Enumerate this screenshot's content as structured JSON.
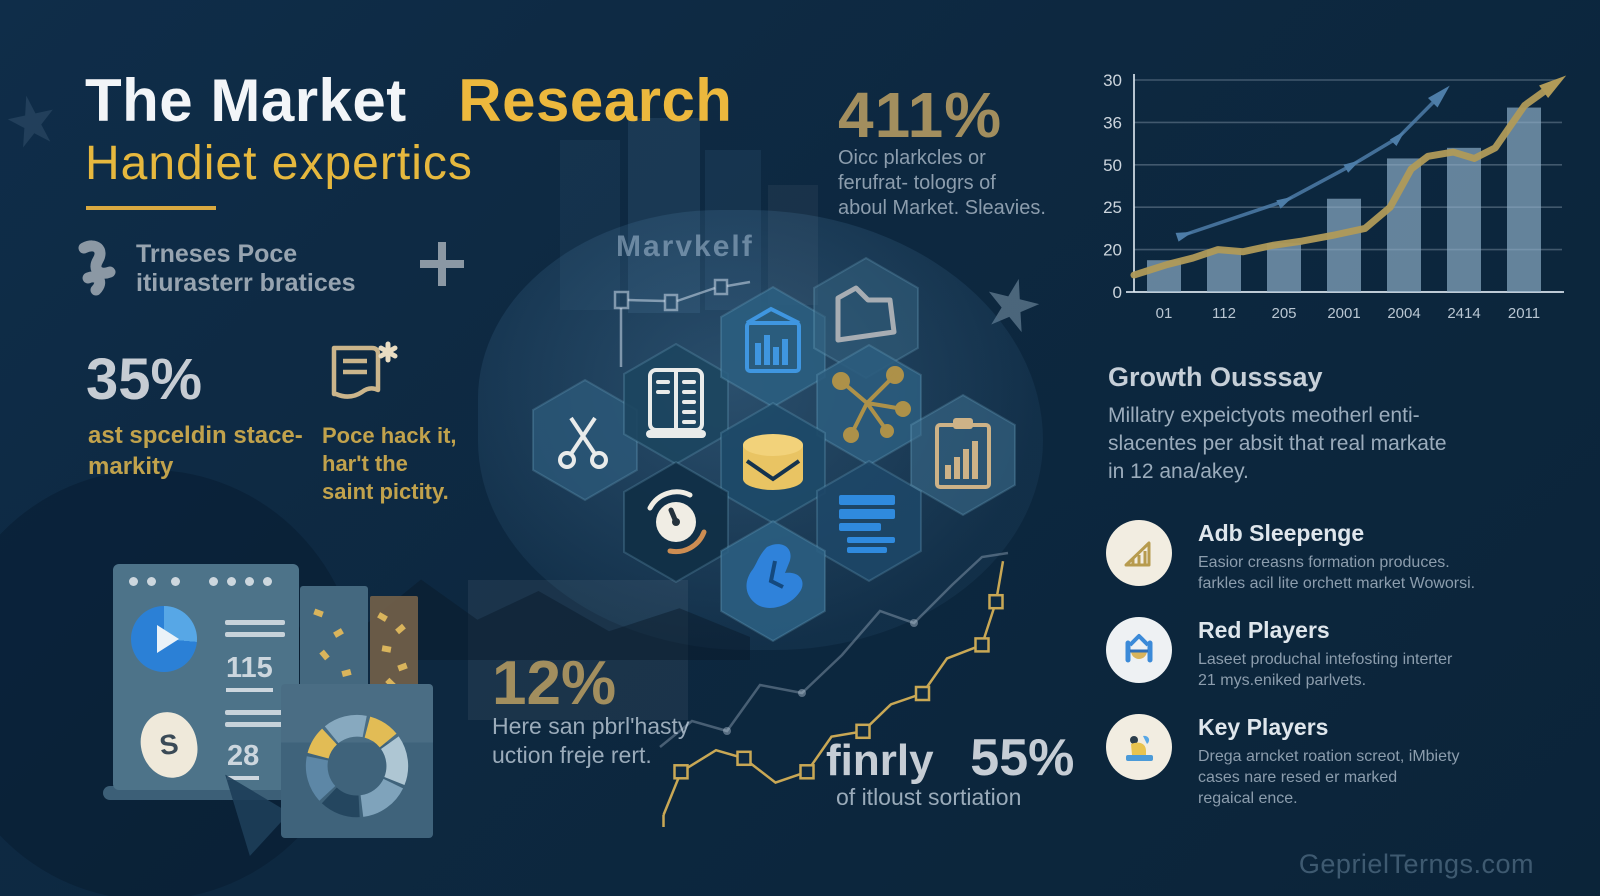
{
  "header": {
    "title_main": "The Market",
    "title_accent": "Research",
    "subtitle": "Handiet expertics"
  },
  "brand": {
    "line1": "Trneses Poce",
    "line2": "itiurasterr bratices"
  },
  "stats": {
    "stat_411": {
      "value": "411%",
      "lines": [
        "Oicc plarkcles or",
        "ferufrat- tologrs of",
        "aboul Market. Sleavies."
      ]
    },
    "stat_35": {
      "value": "35%",
      "lines": [
        "ast spceldin stace-",
        "markity"
      ]
    },
    "stat_12": {
      "value": "12%",
      "lines": [
        "Here san pbrl'hasty",
        "uction freje rert."
      ]
    },
    "stat_55": {
      "prefix": "finrly",
      "value": "55%",
      "caption": "of itloust sortiation"
    }
  },
  "doc_note": {
    "lines": [
      "Poce hack it,",
      "har't the",
      "saint pictity."
    ]
  },
  "center_label": "Marvkelf",
  "growth": {
    "heading": "Growth Ousssay",
    "lines": [
      "Millatry expeictyots  meotherl enti-",
      "slacentes per absit that real markate",
      "in 12 ana/akey."
    ]
  },
  "players": [
    {
      "title": "Adb Sleepenge",
      "icon": "growth-chart-icon",
      "lines": [
        "Easior creasns formation produces.",
        "farkles acil lite orchett market Woworsi."
      ]
    },
    {
      "title": "Red Players",
      "icon": "home-arrow-icon",
      "lines": [
        "Laseet produchal intefosting interter",
        "21 mys.eniked parlvets."
      ]
    },
    {
      "title": "Key Players",
      "icon": "person-podium-icon",
      "lines": [
        "Drega arncket roation screot, iMbiety",
        "cases nare resed er marked",
        "regaical ence."
      ]
    }
  ],
  "window_card": {
    "value1": "115",
    "value2": "28",
    "bag_letter": "S"
  },
  "meta": {
    "watermark": "GeprielTerngs.com"
  },
  "colors": {
    "background": "#0d2840",
    "accent_yellow": "#ecb83d",
    "gold_tan": "#a28e5e",
    "text_gray": "#8c9dad",
    "bar_fill": "#8fb0c9",
    "gold_line": "#b09a58",
    "blue_line": "#4d7da8",
    "cream_circle": "#f2ede1"
  },
  "icons": {
    "brand": "squiggle-icon",
    "plus": "plus-icon",
    "note": "document-asterisk-icon",
    "hexagons": [
      "scissors",
      "server",
      "bar-chart-document",
      "folder",
      "network-nodes",
      "database",
      "gauge",
      "document-lines",
      "hand",
      "clipboard-chart"
    ],
    "window": [
      "window-dots",
      "play-button",
      "money-bag",
      "donut-chart"
    ]
  },
  "chart_data": [
    {
      "id": "growth-combo-chart",
      "type": "bar",
      "title": "",
      "categories": [
        "01",
        "112",
        "205",
        "2001",
        "2004",
        "2414",
        "2011"
      ],
      "y_tick_labels": [
        "30",
        "36",
        "50",
        "25",
        "20",
        "0"
      ],
      "ylim": [
        0,
        100
      ],
      "grid": true,
      "legend": false,
      "series": [
        {
          "name": "volume-bars",
          "type": "bar",
          "values": [
            15,
            20,
            23,
            44,
            63,
            68,
            87
          ]
        },
        {
          "name": "gold-trend-line",
          "type": "line",
          "x": [
            0,
            8,
            14,
            20,
            26,
            33,
            40,
            48,
            55,
            61,
            66,
            70,
            76,
            81,
            86,
            93,
            100
          ],
          "values": [
            8,
            13,
            16,
            20,
            19,
            22,
            24,
            27,
            30,
            40,
            58,
            64,
            66,
            63,
            68,
            88,
            98
          ]
        },
        {
          "name": "blue-arrow-line",
          "type": "line",
          "x": [
            12,
            36,
            52,
            63,
            73
          ],
          "values": [
            27,
            43,
            60,
            73,
            93
          ]
        }
      ]
    },
    {
      "id": "donut-chart",
      "type": "pie",
      "segments": [
        {
          "color": "#e2bc55",
          "value": 11
        },
        {
          "color": "#aec6d3",
          "value": 17
        },
        {
          "color": "#7fa3bb",
          "value": 17
        },
        {
          "color": "#24465f",
          "value": 14
        },
        {
          "color": "#5d87a6",
          "value": 16
        },
        {
          "color": "#e2bc55",
          "value": 10
        },
        {
          "color": "#87a9bf",
          "value": 15
        }
      ]
    },
    {
      "id": "step-zigzag-line",
      "type": "line",
      "color": "#c9a855",
      "points": [
        [
          1,
          0
        ],
        [
          6,
          16
        ],
        [
          16,
          24
        ],
        [
          24,
          21
        ],
        [
          33,
          12
        ],
        [
          42,
          16
        ],
        [
          49,
          29
        ],
        [
          58,
          31
        ],
        [
          66,
          41
        ],
        [
          75,
          45
        ],
        [
          82,
          58
        ],
        [
          92,
          63
        ],
        [
          96,
          79
        ],
        [
          98,
          94
        ]
      ],
      "marker_indices": [
        1,
        3,
        5,
        7,
        9,
        11,
        12
      ]
    }
  ]
}
